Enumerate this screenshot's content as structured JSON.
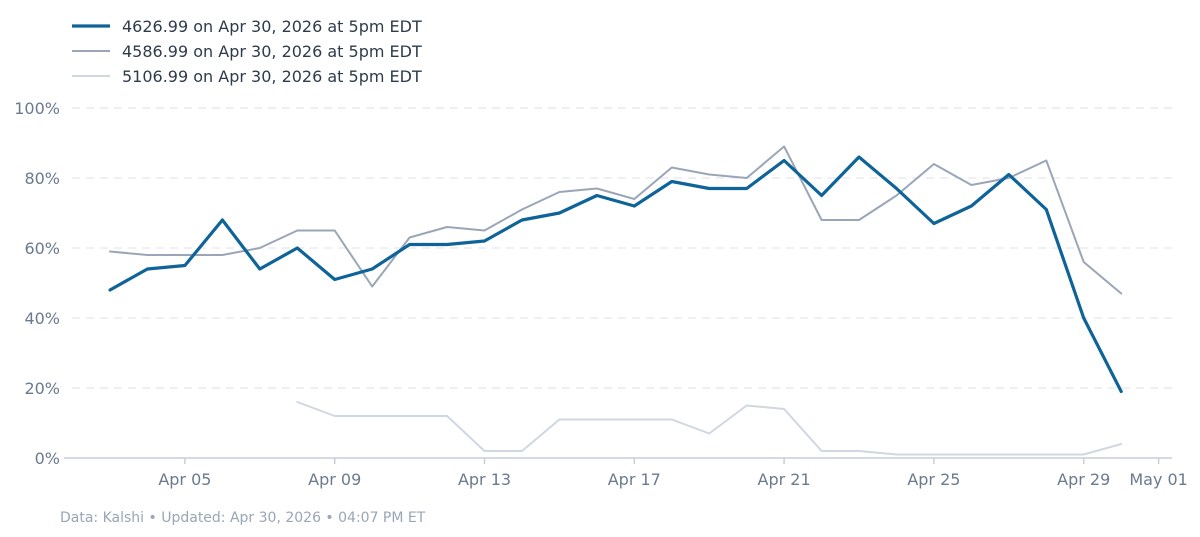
{
  "chart_data": {
    "type": "line",
    "x_ticks": [
      "Apr 05",
      "Apr 09",
      "Apr 13",
      "Apr 17",
      "Apr 21",
      "Apr 25",
      "Apr 29",
      "May 01"
    ],
    "y_ticks": [
      "0%",
      "20%",
      "40%",
      "60%",
      "80%",
      "100%"
    ],
    "ylim": [
      0,
      100
    ],
    "xlim": [
      "2026-04-02",
      "2026-05-01"
    ],
    "grid": true,
    "legend_position": "top-left",
    "series": [
      {
        "name": "4626.99 on Apr 30, 2026 at 5pm EDT",
        "color": "#0e6399",
        "x": [
          "2026-04-03",
          "2026-04-04",
          "2026-04-05",
          "2026-04-06",
          "2026-04-07",
          "2026-04-08",
          "2026-04-09",
          "2026-04-10",
          "2026-04-11",
          "2026-04-12",
          "2026-04-13",
          "2026-04-14",
          "2026-04-15",
          "2026-04-16",
          "2026-04-17",
          "2026-04-18",
          "2026-04-19",
          "2026-04-20",
          "2026-04-21",
          "2026-04-22",
          "2026-04-23",
          "2026-04-24",
          "2026-04-25",
          "2026-04-26",
          "2026-04-27",
          "2026-04-28",
          "2026-04-29",
          "2026-04-30"
        ],
        "values": [
          48,
          54,
          55,
          68,
          54,
          60,
          51,
          54,
          61,
          61,
          62,
          68,
          70,
          75,
          72,
          79,
          77,
          77,
          85,
          75,
          86,
          77,
          67,
          72,
          81,
          71,
          40,
          19
        ]
      },
      {
        "name": "4586.99 on Apr 30, 2026 at 5pm EDT",
        "color": "#9aa6b8",
        "x": [
          "2026-04-03",
          "2026-04-04",
          "2026-04-05",
          "2026-04-06",
          "2026-04-07",
          "2026-04-08",
          "2026-04-09",
          "2026-04-10",
          "2026-04-11",
          "2026-04-12",
          "2026-04-13",
          "2026-04-14",
          "2026-04-15",
          "2026-04-16",
          "2026-04-17",
          "2026-04-18",
          "2026-04-19",
          "2026-04-20",
          "2026-04-21",
          "2026-04-22",
          "2026-04-23",
          "2026-04-24",
          "2026-04-25",
          "2026-04-26",
          "2026-04-27",
          "2026-04-28",
          "2026-04-29",
          "2026-04-30"
        ],
        "values": [
          59,
          58,
          58,
          58,
          60,
          65,
          65,
          49,
          63,
          66,
          65,
          71,
          76,
          77,
          74,
          83,
          81,
          80,
          89,
          68,
          68,
          75,
          84,
          78,
          80,
          85,
          56,
          47
        ]
      },
      {
        "name": "5106.99 on Apr 30, 2026 at 5pm EDT",
        "color": "#d0d7e0",
        "x": [
          "2026-04-08",
          "2026-04-09",
          "2026-04-10",
          "2026-04-11",
          "2026-04-12",
          "2026-04-13",
          "2026-04-14",
          "2026-04-15",
          "2026-04-16",
          "2026-04-17",
          "2026-04-18",
          "2026-04-19",
          "2026-04-20",
          "2026-04-21",
          "2026-04-22",
          "2026-04-23",
          "2026-04-24",
          "2026-04-25",
          "2026-04-26",
          "2026-04-27",
          "2026-04-28",
          "2026-04-29",
          "2026-04-30"
        ],
        "values": [
          16,
          12,
          12,
          12,
          12,
          2,
          2,
          11,
          11,
          11,
          11,
          7,
          15,
          14,
          2,
          2,
          1,
          1,
          1,
          1,
          1,
          1,
          4
        ]
      }
    ]
  },
  "footer": "Data: Kalshi • Updated: Apr 30, 2026 • 04:07 PM ET"
}
